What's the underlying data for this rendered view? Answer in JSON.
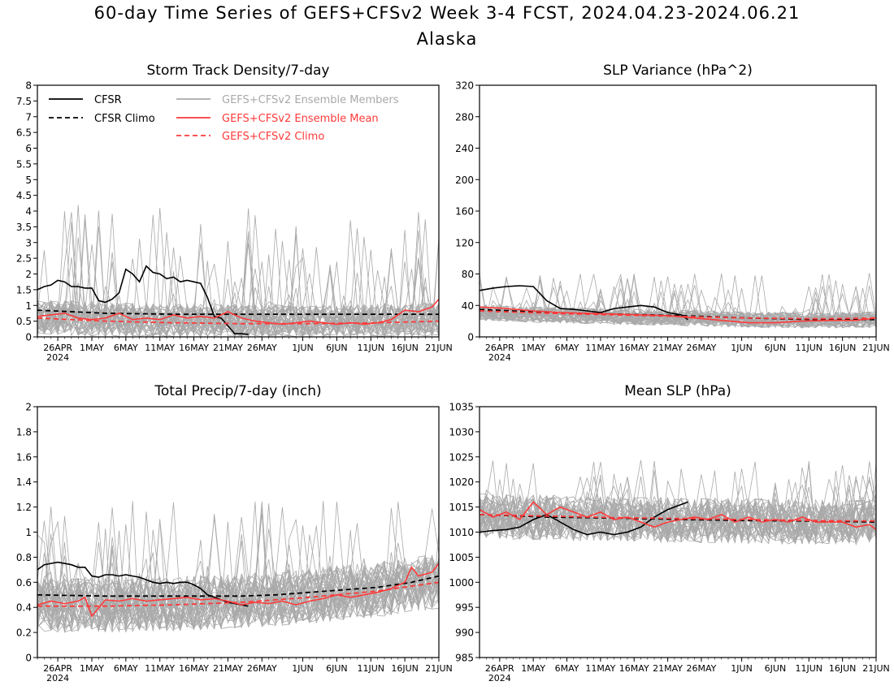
{
  "title": "60-day Time Series of GEFS+CFSv2 Week 3-4 FCST, 2024.04.23-2024.06.21",
  "subtitle": "Alaska",
  "colors": {
    "cfsr": "#000000",
    "members": "#a9a9a9",
    "ens_mean": "#ff3a3a",
    "axes": "#000000"
  },
  "legend": {
    "cfsr": "CFSR",
    "cfsr_climo": "CFSR Climo",
    "members": "GEFS+CFSv2 Ensemble Members",
    "ens_mean": "GEFS+CFSv2 Ensemble Mean",
    "gefs_climo": "GEFS+CFSv2 Climo"
  },
  "x_axis": {
    "tick_labels": [
      "26APR",
      "1MAY",
      "6MAY",
      "11MAY",
      "16MAY",
      "21MAY",
      "26MAY",
      "1JUN",
      "6JUN",
      "11JUN",
      "16JUN",
      "21JUN"
    ],
    "tick_days": [
      3,
      8,
      13,
      18,
      23,
      28,
      33,
      39,
      44,
      49,
      54,
      59
    ],
    "year_label": "2024",
    "day_range": [
      0,
      59
    ]
  },
  "chart_data": [
    {
      "type": "line",
      "title": "Storm Track Density/7-day",
      "ylim": [
        0,
        8
      ],
      "yticks": [
        "0",
        "0.5",
        "1",
        "1.5",
        "2",
        "2.5",
        "3",
        "3.5",
        "4",
        "4.5",
        "5",
        "5.5",
        "6",
        "6.5",
        "7",
        "7.5",
        "8"
      ],
      "show_legend": true,
      "members": {
        "count": 40,
        "center": 0.75,
        "spread": 0.55,
        "max_spike": 4.2
      },
      "series": [
        {
          "name": "CFSR",
          "style": "solid-black",
          "x": [
            0,
            1,
            2,
            3,
            4,
            5,
            6,
            7,
            8,
            9,
            10,
            11,
            12,
            13,
            14,
            15,
            16,
            17,
            18,
            19,
            20,
            21,
            22,
            23,
            24,
            25,
            26,
            27,
            28,
            29,
            30,
            31
          ],
          "values": [
            1.5,
            1.6,
            1.65,
            1.8,
            1.75,
            1.6,
            1.6,
            1.55,
            1.55,
            1.15,
            1.1,
            1.2,
            1.4,
            2.15,
            2.0,
            1.75,
            2.25,
            2.05,
            2.0,
            1.85,
            1.9,
            1.75,
            1.8,
            1.75,
            1.7,
            1.25,
            0.65,
            0.6,
            0.35,
            0.1,
            0.1,
            0.08
          ]
        },
        {
          "name": "CFSR Climo",
          "style": "dashed-black",
          "x": [
            0,
            10,
            20,
            30,
            40,
            50,
            59
          ],
          "values": [
            0.85,
            0.75,
            0.72,
            0.72,
            0.72,
            0.72,
            0.72
          ]
        },
        {
          "name": "GEFS+CFSv2 Ensemble Mean",
          "style": "solid-red",
          "x": [
            0,
            2,
            4,
            6,
            8,
            10,
            12,
            14,
            16,
            18,
            20,
            22,
            24,
            26,
            28,
            30,
            32,
            34,
            36,
            38,
            40,
            42,
            44,
            46,
            48,
            50,
            52,
            54,
            56,
            58,
            59
          ],
          "values": [
            0.65,
            0.7,
            0.75,
            0.6,
            0.55,
            0.6,
            0.75,
            0.55,
            0.6,
            0.55,
            0.7,
            0.6,
            0.65,
            0.6,
            0.8,
            0.6,
            0.5,
            0.45,
            0.4,
            0.45,
            0.5,
            0.45,
            0.4,
            0.45,
            0.4,
            0.45,
            0.55,
            0.85,
            0.8,
            0.95,
            1.2
          ]
        },
        {
          "name": "GEFS+CFSv2 Climo",
          "style": "dashed-red",
          "x": [
            0,
            10,
            20,
            30,
            40,
            50,
            59
          ],
          "values": [
            0.6,
            0.5,
            0.45,
            0.42,
            0.42,
            0.45,
            0.5
          ]
        }
      ]
    },
    {
      "type": "line",
      "title": "SLP Variance (hPa^2)",
      "ylim": [
        0,
        320
      ],
      "yticks": [
        "0",
        "40",
        "80",
        "120",
        "160",
        "200",
        "240",
        "280",
        "320"
      ],
      "show_legend": false,
      "members": {
        "count": 40,
        "center": 26,
        "spread": 10,
        "max_spike": 82
      },
      "series": [
        {
          "name": "CFSR",
          "style": "solid-black",
          "x": [
            0,
            2,
            4,
            6,
            8,
            10,
            12,
            14,
            16,
            18,
            20,
            22,
            24,
            26,
            28,
            30,
            31
          ],
          "values": [
            59,
            62,
            64,
            65,
            64,
            46,
            36,
            35,
            33,
            31,
            36,
            38,
            40,
            38,
            31,
            28,
            22
          ]
        },
        {
          "name": "CFSR Climo",
          "style": "dashed-black",
          "x": [
            0,
            10,
            20,
            30,
            40,
            50,
            59
          ],
          "values": [
            35,
            31,
            29,
            27,
            24,
            22,
            22
          ]
        },
        {
          "name": "GEFS+CFSv2 Ensemble Mean",
          "style": "solid-red",
          "x": [
            0,
            4,
            8,
            12,
            16,
            20,
            24,
            28,
            32,
            36,
            40,
            44,
            48,
            52,
            56,
            59
          ],
          "values": [
            38,
            36,
            33,
            31,
            30,
            29,
            28,
            27,
            24,
            21,
            18,
            18,
            20,
            21,
            21,
            24
          ]
        },
        {
          "name": "GEFS+CFSv2 Climo",
          "style": "dashed-red",
          "x": [
            0,
            10,
            20,
            30,
            40,
            50,
            59
          ],
          "values": [
            33,
            30,
            28,
            26,
            24,
            23,
            24
          ]
        }
      ]
    },
    {
      "type": "line",
      "title": "Total Precip/7-day (inch)",
      "ylim": [
        0,
        2
      ],
      "yticks": [
        "0",
        "0.2",
        "0.4",
        "0.6",
        "0.8",
        "1",
        "1.2",
        "1.4",
        "1.6",
        "1.8",
        "2"
      ],
      "show_legend": false,
      "members": {
        "count": 40,
        "center": 0.45,
        "spread": 0.22,
        "max_spike": 1.25
      },
      "series": [
        {
          "name": "CFSR",
          "style": "solid-black",
          "x": [
            0,
            1,
            2,
            3,
            4,
            5,
            6,
            7,
            8,
            9,
            10,
            11,
            12,
            13,
            14,
            15,
            16,
            17,
            18,
            19,
            20,
            21,
            22,
            23,
            24,
            25,
            26,
            27,
            28,
            29,
            30,
            31
          ],
          "values": [
            0.7,
            0.74,
            0.75,
            0.76,
            0.75,
            0.74,
            0.72,
            0.72,
            0.65,
            0.64,
            0.66,
            0.66,
            0.65,
            0.66,
            0.65,
            0.64,
            0.62,
            0.6,
            0.59,
            0.6,
            0.59,
            0.6,
            0.6,
            0.58,
            0.55,
            0.5,
            0.48,
            0.46,
            0.44,
            0.43,
            0.42,
            0.41
          ]
        },
        {
          "name": "CFSR Climo",
          "style": "dashed-black",
          "x": [
            0,
            10,
            20,
            30,
            35,
            40,
            45,
            50,
            55,
            59
          ],
          "values": [
            0.5,
            0.49,
            0.49,
            0.49,
            0.5,
            0.52,
            0.54,
            0.56,
            0.6,
            0.65
          ]
        },
        {
          "name": "GEFS+CFSv2 Ensemble Mean",
          "style": "solid-red",
          "x": [
            0,
            2,
            4,
            6,
            7,
            8,
            10,
            12,
            14,
            16,
            18,
            20,
            22,
            24,
            26,
            28,
            30,
            32,
            34,
            36,
            38,
            40,
            42,
            44,
            46,
            48,
            50,
            52,
            54,
            55,
            56,
            58,
            59
          ],
          "values": [
            0.42,
            0.45,
            0.43,
            0.45,
            0.48,
            0.33,
            0.46,
            0.45,
            0.47,
            0.45,
            0.46,
            0.47,
            0.48,
            0.46,
            0.47,
            0.45,
            0.42,
            0.44,
            0.43,
            0.45,
            0.42,
            0.45,
            0.47,
            0.5,
            0.48,
            0.5,
            0.52,
            0.55,
            0.6,
            0.72,
            0.65,
            0.68,
            0.75
          ]
        },
        {
          "name": "GEFS+CFSv2 Climo",
          "style": "dashed-red",
          "x": [
            0,
            10,
            20,
            30,
            40,
            50,
            59
          ],
          "values": [
            0.41,
            0.41,
            0.42,
            0.44,
            0.48,
            0.53,
            0.6
          ]
        }
      ]
    },
    {
      "type": "line",
      "title": "Mean SLP (hPa)",
      "ylim": [
        985,
        1035
      ],
      "yticks": [
        "985",
        "990",
        "995",
        "1000",
        "1005",
        "1010",
        "1015",
        "1020",
        "1025",
        "1030",
        "1035"
      ],
      "show_legend": false,
      "members": {
        "count": 40,
        "center": 1012.5,
        "spread": 4.5,
        "max_spike": 1024.5
      },
      "series": [
        {
          "name": "CFSR",
          "style": "solid-black",
          "x": [
            0,
            2,
            4,
            6,
            8,
            10,
            12,
            14,
            16,
            18,
            20,
            22,
            24,
            26,
            28,
            30,
            31
          ],
          "values": [
            1010,
            1010.3,
            1010.5,
            1011,
            1012.5,
            1013.5,
            1012,
            1010.5,
            1009.5,
            1010,
            1009.5,
            1010,
            1011,
            1013,
            1014.5,
            1015.5,
            1016
          ]
        },
        {
          "name": "CFSR Climo",
          "style": "dashed-black",
          "x": [
            0,
            10,
            20,
            30,
            40,
            50,
            59
          ],
          "values": [
            1013.5,
            1013,
            1012.8,
            1012.5,
            1012.3,
            1012.2,
            1012
          ]
        },
        {
          "name": "GEFS+CFSv2 Ensemble Mean",
          "style": "solid-red",
          "x": [
            0,
            2,
            4,
            6,
            8,
            10,
            12,
            14,
            16,
            18,
            20,
            22,
            24,
            26,
            28,
            30,
            32,
            34,
            36,
            38,
            40,
            42,
            44,
            46,
            48,
            50,
            52,
            54,
            56,
            58,
            59
          ],
          "values": [
            1014.5,
            1013,
            1014,
            1012.5,
            1016,
            1013.5,
            1015,
            1014,
            1013,
            1014,
            1012.5,
            1013,
            1012,
            1011,
            1012,
            1012.5,
            1013,
            1012.5,
            1013.5,
            1012,
            1013,
            1012,
            1012.5,
            1012,
            1013,
            1012,
            1012,
            1012,
            1011,
            1011.5,
            1010.5
          ]
        },
        {
          "name": "GEFS+CFSv2 Climo",
          "style": "dashed-red",
          "x": [
            0,
            10,
            20,
            30,
            40,
            50,
            59
          ],
          "values": [
            1013.5,
            1013.2,
            1012.9,
            1012.7,
            1012.5,
            1012.3,
            1012.2
          ]
        }
      ]
    }
  ]
}
